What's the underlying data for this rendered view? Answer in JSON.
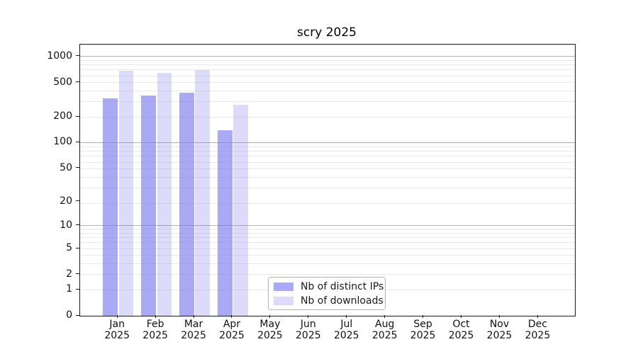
{
  "chart_data": {
    "type": "bar",
    "title": "scry 2025",
    "categories": [
      "Jan",
      "Feb",
      "Mar",
      "Apr",
      "May",
      "Jun",
      "Jul",
      "Aug",
      "Sep",
      "Oct",
      "Nov",
      "Dec"
    ],
    "category_year": "2025",
    "series": [
      {
        "name": "Nb of distinct IPs",
        "color": "rgba(124,124,238,0.65)",
        "values": [
          330,
          355,
          380,
          140,
          null,
          null,
          null,
          null,
          null,
          null,
          null,
          null
        ]
      },
      {
        "name": "Nb of downloads",
        "color": "rgba(124,124,238,0.27)",
        "values": [
          690,
          650,
          700,
          275,
          null,
          null,
          null,
          null,
          null,
          null,
          null,
          null
        ]
      }
    ],
    "yscale": "log1p",
    "yticks": [
      0,
      1,
      2,
      5,
      10,
      20,
      50,
      100,
      200,
      500,
      1000
    ],
    "ylim": [
      0,
      1377
    ],
    "xlabel": "",
    "ylabel": "",
    "grid": "horizontal",
    "legend_position": "inside-bottom-center"
  },
  "colors": {
    "major_grid": "#b0b0b0",
    "minor_grid": "#e9e9e9",
    "spine": "#1a1a1a",
    "text": "#111111",
    "legend_border": "#b4b4b4",
    "background": "#ffffff"
  }
}
